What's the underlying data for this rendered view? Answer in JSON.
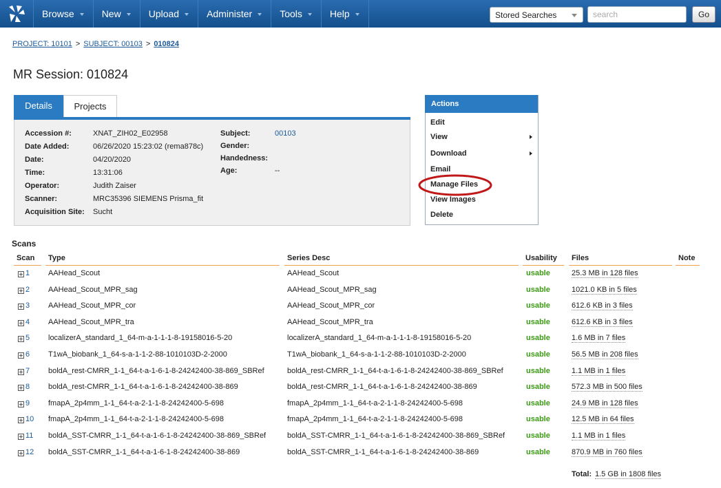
{
  "nav": {
    "items": [
      "Browse",
      "New",
      "Upload",
      "Administer",
      "Tools",
      "Help"
    ],
    "stored_searches": "Stored Searches",
    "search_placeholder": "search",
    "go": "Go"
  },
  "breadcrumb": {
    "items": [
      "PROJECT: 10101",
      "SUBJECT: 00103",
      "010824"
    ],
    "separator": ">"
  },
  "title": "MR Session: 010824",
  "tabs": [
    "Details",
    "Projects"
  ],
  "details": {
    "left": [
      [
        "Accession #:",
        "XNAT_ZIH02_E02958"
      ],
      [
        "Date Added:",
        "06/26/2020 15:23:02 (rema878c)"
      ],
      [
        "Date:",
        "04/20/2020"
      ],
      [
        "Time:",
        "13:31:06"
      ],
      [
        "Operator:",
        "Judith Zaiser"
      ],
      [
        "Scanner:",
        "MRC35396 SIEMENS Prisma_fit"
      ],
      [
        "Acquisition Site:",
        "Sucht"
      ]
    ],
    "right": [
      [
        "Subject:",
        "00103"
      ],
      [
        "Gender:"
      ],
      [
        "Handedness:"
      ],
      [
        "Age:",
        "--"
      ]
    ]
  },
  "actions": {
    "title": "Actions",
    "items": [
      "Edit",
      "View",
      "Download",
      "Email",
      "Manage Files",
      "View Images",
      "Delete"
    ]
  },
  "scans": {
    "heading": "Scans",
    "columns": [
      "Scan",
      "Type",
      "Series Desc",
      "Usability",
      "Files",
      "Note"
    ],
    "rows": [
      [
        "1",
        "AAHead_Scout",
        "AAHead_Scout",
        "usable",
        "25.3 MB in 128 files"
      ],
      [
        "2",
        "AAHead_Scout_MPR_sag",
        "AAHead_Scout_MPR_sag",
        "usable",
        "1021.0 KB in 5 files"
      ],
      [
        "3",
        "AAHead_Scout_MPR_cor",
        "AAHead_Scout_MPR_cor",
        "usable",
        "612.6 KB in 3 files"
      ],
      [
        "4",
        "AAHead_Scout_MPR_tra",
        "AAHead_Scout_MPR_tra",
        "usable",
        "612.6 KB in 3 files"
      ],
      [
        "5",
        "localizerA_standard_1_64-m-a-1-1-1-8-19158016-5-20",
        "localizerA_standard_1_64-m-a-1-1-1-8-19158016-5-20",
        "usable",
        "1.6 MB in 7 files"
      ],
      [
        "6",
        "T1wA_biobank_1_64-s-a-1-1-2-88-1010103D-2-2000",
        "T1wA_biobank_1_64-s-a-1-1-2-88-1010103D-2-2000",
        "usable",
        "56.5 MB in 208 files"
      ],
      [
        "7",
        "boldA_rest-CMRR_1-1_64-t-a-1-6-1-8-24242400-38-869_SBRef",
        "boldA_rest-CMRR_1-1_64-t-a-1-6-1-8-24242400-38-869_SBRef",
        "usable",
        "1.1 MB in 1 files"
      ],
      [
        "8",
        "boldA_rest-CMRR_1-1_64-t-a-1-6-1-8-24242400-38-869",
        "boldA_rest-CMRR_1-1_64-t-a-1-6-1-8-24242400-38-869",
        "usable",
        "572.3 MB in 500 files"
      ],
      [
        "9",
        "fmapA_2p4mm_1-1_64-t-a-2-1-1-8-24242400-5-698",
        "fmapA_2p4mm_1-1_64-t-a-2-1-1-8-24242400-5-698",
        "usable",
        "24.9 MB in 128 files"
      ],
      [
        "10",
        "fmapA_2p4mm_1-1_64-t-a-2-1-1-8-24242400-5-698",
        "fmapA_2p4mm_1-1_64-t-a-2-1-1-8-24242400-5-698",
        "usable",
        "12.5 MB in 64 files"
      ],
      [
        "11",
        "boldA_SST-CMRR_1-1_64-t-a-1-6-1-8-24242400-38-869_SBRef",
        "boldA_SST-CMRR_1-1_64-t-a-1-6-1-8-24242400-38-869_SBRef",
        "usable",
        "1.1 MB in 1 files"
      ],
      [
        "12",
        "boldA_SST-CMRR_1-1_64-t-a-1-6-1-8-24242400-38-869",
        "boldA_SST-CMRR_1-1_64-t-a-1-6-1-8-24242400-38-869",
        "usable",
        "870.9 MB in 760 files"
      ]
    ],
    "total_label": "Total:",
    "total": "1.5 GB in 1808 files"
  }
}
